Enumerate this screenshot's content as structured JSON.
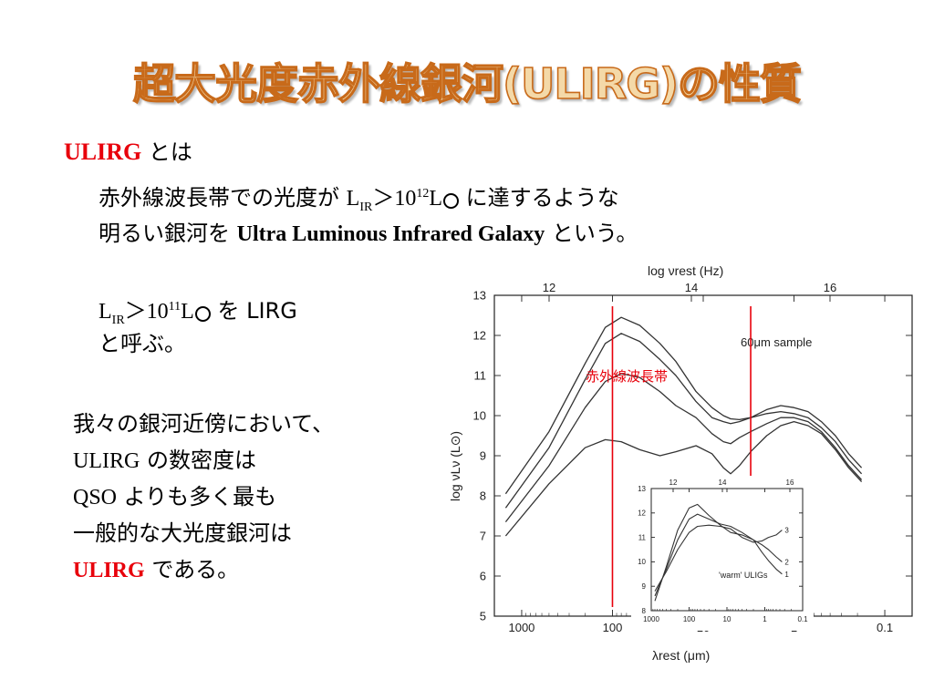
{
  "title": "超大光度赤外線銀河(ULIRG)の性質",
  "definition": {
    "term": "ULIRG",
    "term_suffix": "とは",
    "line1_prefix": "赤外線波長帯での光度が",
    "lum_L": "L",
    "lum_sub": "IR",
    "gt": "＞",
    "lum_base": "10",
    "exp12": "12",
    "lum_unit": "L",
    "line1_suffix": "に達するような",
    "line2_prefix": "明るい銀河を",
    "english_name": "Ultra Luminous Infrared Galaxy",
    "line2_suffix": "という。"
  },
  "lirg": {
    "exp11": "11",
    "suffix": "を LIRG",
    "line2": "と呼ぶ。"
  },
  "paragraph": {
    "line1": "我々の銀河近傍において、",
    "line2_a": "ULIRG",
    "line2_b": "の数密度は",
    "line3_a": "QSO",
    "line3_b": "よりも多く最も",
    "line4": "一般的な大光度銀河は",
    "line5_a": "ULIRG",
    "line5_b": "である。"
  },
  "colors": {
    "title_fill": "#f4d9a8",
    "title_stroke": "#c86a1a",
    "accent_red": "#e8000b"
  },
  "chart_data": [
    {
      "type": "line",
      "x_scale": "log",
      "x_reversed": true,
      "xlabel": "λrest (μm)",
      "ylabel": "log νLν (L⊙)",
      "top_axis_label": "log νrest (Hz)",
      "xlim": [
        2000,
        0.05
      ],
      "ylim": [
        5,
        13
      ],
      "x_ticks": [
        "1000",
        "100",
        "10",
        "1",
        "0.1"
      ],
      "y_ticks": [
        "5",
        "6",
        "7",
        "8",
        "9",
        "10",
        "11",
        "12",
        "13"
      ],
      "top_ticks": [
        "12",
        "14",
        "16"
      ],
      "annotation": "60μm sample",
      "band_label": "赤外線波長帯",
      "band_lines_um": [
        100,
        3
      ],
      "series": [
        {
          "x": [
            1500,
            500,
            200,
            120,
            80,
            50,
            30,
            20,
            12,
            8,
            6,
            5,
            4,
            3,
            2,
            1.4,
            1,
            0.7,
            0.5,
            0.35,
            0.25,
            0.18
          ],
          "values": [
            8.05,
            9.6,
            11.3,
            12.2,
            12.45,
            12.25,
            11.8,
            11.35,
            10.6,
            10.2,
            10.0,
            9.92,
            9.9,
            9.95,
            10.15,
            10.25,
            10.2,
            10.1,
            9.85,
            9.5,
            9.05,
            8.7
          ]
        },
        {
          "x": [
            1500,
            500,
            200,
            120,
            80,
            50,
            30,
            20,
            12,
            8,
            6,
            5,
            4,
            3,
            2,
            1.4,
            1,
            0.7,
            0.5,
            0.35,
            0.25,
            0.18
          ],
          "values": [
            7.7,
            9.2,
            10.9,
            11.8,
            12.05,
            11.85,
            11.4,
            11.0,
            10.35,
            9.95,
            9.85,
            9.8,
            9.85,
            9.95,
            10.05,
            10.1,
            10.05,
            9.95,
            9.7,
            9.35,
            8.9,
            8.55
          ]
        },
        {
          "x": [
            1500,
            500,
            200,
            120,
            80,
            50,
            30,
            20,
            12,
            8,
            6,
            5,
            4,
            3,
            2,
            1.4,
            1,
            0.7,
            0.5,
            0.35,
            0.25,
            0.18
          ],
          "values": [
            7.35,
            8.75,
            10.2,
            10.85,
            11.05,
            10.95,
            10.6,
            10.25,
            9.95,
            9.55,
            9.35,
            9.3,
            9.45,
            9.6,
            9.8,
            9.95,
            9.95,
            9.85,
            9.6,
            9.2,
            8.75,
            8.4
          ]
        },
        {
          "x": [
            1500,
            500,
            200,
            120,
            80,
            50,
            30,
            20,
            12,
            8,
            6,
            5,
            4,
            3,
            2,
            1.4,
            1,
            0.7,
            0.5,
            0.35,
            0.25,
            0.18
          ],
          "values": [
            7.0,
            8.3,
            9.2,
            9.4,
            9.35,
            9.15,
            9.0,
            9.1,
            9.25,
            9.05,
            8.7,
            8.55,
            8.75,
            9.1,
            9.5,
            9.75,
            9.85,
            9.75,
            9.55,
            9.15,
            8.7,
            8.35
          ]
        }
      ]
    },
    {
      "type": "line",
      "x_scale": "log",
      "x_reversed": true,
      "label": "'warm' ULIGs",
      "xlim": [
        1000,
        0.1
      ],
      "ylim": [
        8,
        13
      ],
      "x_ticks": [
        "1000",
        "100",
        "10",
        "1",
        "0.1"
      ],
      "y_ticks": [
        "8",
        "9",
        "10",
        "11",
        "12",
        "13"
      ],
      "top_ticks": [
        "12",
        "14",
        "16"
      ],
      "series": [
        {
          "name": "1",
          "x": [
            800,
            400,
            200,
            100,
            60,
            30,
            15,
            8,
            4,
            2,
            1.2,
            0.8,
            0.5,
            0.35
          ],
          "values": [
            8.4,
            9.8,
            11.3,
            12.2,
            12.35,
            11.9,
            11.5,
            11.2,
            11.1,
            10.9,
            10.4,
            10.05,
            9.7,
            9.5
          ]
        },
        {
          "name": "2",
          "x": [
            800,
            400,
            200,
            100,
            60,
            30,
            15,
            8,
            4,
            2,
            1.2,
            0.8,
            0.5,
            0.35
          ],
          "values": [
            8.6,
            9.7,
            10.9,
            11.75,
            11.95,
            11.75,
            11.55,
            11.45,
            11.2,
            10.9,
            10.7,
            10.5,
            10.2,
            10.0
          ]
        },
        {
          "name": "3",
          "x": [
            800,
            400,
            200,
            100,
            60,
            30,
            15,
            8,
            4,
            2,
            1.2,
            0.8,
            0.5,
            0.35
          ],
          "values": [
            8.8,
            9.6,
            10.5,
            11.2,
            11.45,
            11.5,
            11.45,
            11.35,
            11.0,
            10.8,
            10.85,
            11.0,
            11.1,
            11.3
          ]
        }
      ]
    }
  ]
}
